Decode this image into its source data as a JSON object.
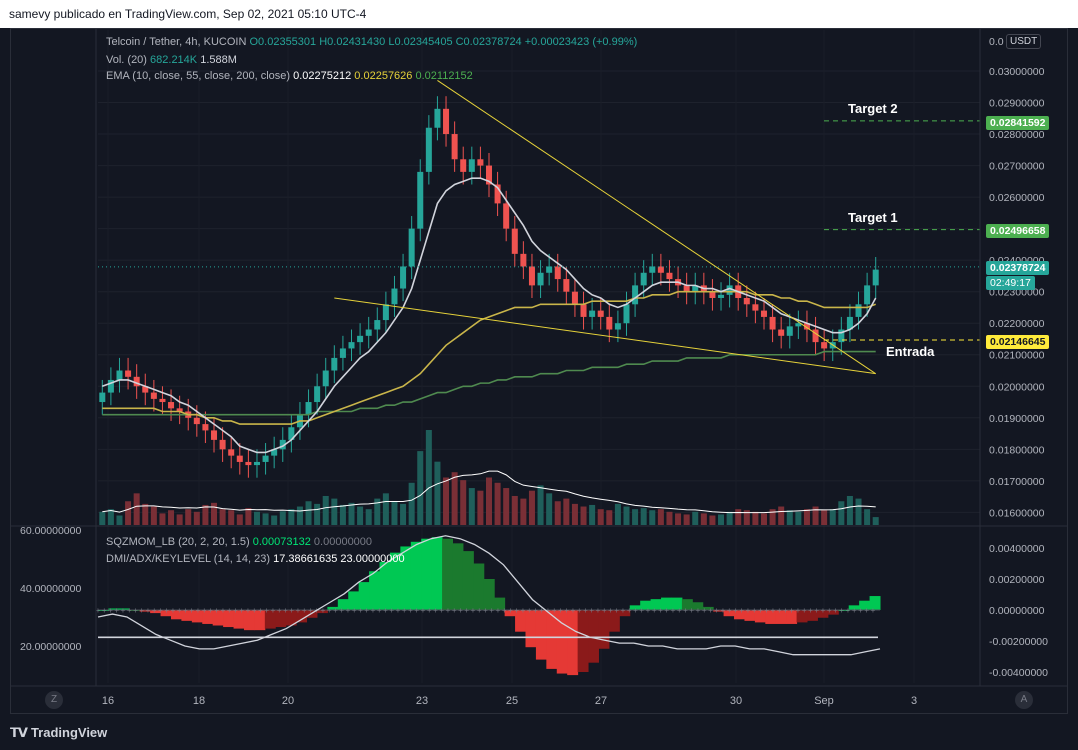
{
  "header": {
    "caption": "samevy publicado en TradingView.com, Sep 02, 2021 05:10 UTC-4"
  },
  "legend": {
    "symbol": "Telcoin / Tether, 4h, KUCOIN",
    "ohlc": "O0.02355301  H0.02431430  L0.02345405  C0.02378724  +0.00023423 (+0.99%)",
    "vol_label": "Vol. (20)",
    "vol_val1": "682.214K",
    "vol_val2": "1.588M",
    "ema_label": "EMA (10, close, 55, close, 200, close)",
    "ema_val1": "0.02275212",
    "ema_val2": "0.02257626",
    "ema_val3": "0.02112152",
    "sqz_label": "SQZMOM_LB (20, 2, 20, 1.5)",
    "sqz_val1": "0.00073132",
    "sqz_val2": "0.00000000",
    "dmi_label": "DMI/ADX/KEYLEVEL (14, 14, 23)",
    "dmi_val1": "17.38661635",
    "dmi_val2": "23.00000000"
  },
  "currency_button": "USDT",
  "annotations": {
    "target2": "Target 2",
    "target1": "Target 1",
    "entry": "Entrada"
  },
  "price_tags": {
    "target2": "0.02841592",
    "target1": "0.02496658",
    "last": "0.02378724",
    "countdown": "02:49:17",
    "entry": "0.02146645"
  },
  "price_axis": [
    "0.03000000",
    "0.02900000",
    "0.02800000",
    "0.02700000",
    "0.02600000",
    "0.02500000",
    "0.02400000",
    "0.02300000",
    "0.02200000",
    "0.02100000",
    "0.02000000",
    "0.01900000",
    "0.01800000",
    "0.01700000",
    "0.01600000"
  ],
  "price_axis_top": "0.0",
  "osc_right_axis": [
    "0.00400000",
    "0.00200000",
    "0.00000000",
    "-0.00200000",
    "-0.00400000"
  ],
  "osc_left_axis": [
    "60.00000000",
    "40.00000000",
    "20.00000000"
  ],
  "time_axis": [
    "16",
    "18",
    "20",
    "23",
    "25",
    "27",
    "30",
    "Sep",
    "3"
  ],
  "corners": {
    "left": "Z",
    "right": "A"
  },
  "footer": {
    "brand": "TradingView"
  },
  "colors": {
    "up": "#26a69a",
    "down": "#ef5350",
    "ema10": "#d1d4dc",
    "ema55": "#c9b54a",
    "ema200": "#4f8a4f",
    "trend": "#e6d23a",
    "target": "#4caf50",
    "entry": "#ffeb3b"
  },
  "chart_data": {
    "type": "candlestick",
    "symbol": "Telcoin / Tether",
    "interval": "4h",
    "y_range": [
      0.0156,
      0.0313
    ],
    "close_series": [
      0.0198,
      0.0202,
      0.0205,
      0.0203,
      0.02,
      0.0198,
      0.0196,
      0.0195,
      0.0193,
      0.0192,
      0.019,
      0.0188,
      0.0186,
      0.0183,
      0.018,
      0.0178,
      0.0176,
      0.0175,
      0.0176,
      0.0178,
      0.018,
      0.0183,
      0.0187,
      0.0191,
      0.0195,
      0.02,
      0.0205,
      0.0209,
      0.0212,
      0.0214,
      0.0216,
      0.0218,
      0.0221,
      0.0226,
      0.0231,
      0.0238,
      0.025,
      0.0268,
      0.0282,
      0.0288,
      0.028,
      0.0272,
      0.0268,
      0.0272,
      0.027,
      0.0264,
      0.0258,
      0.025,
      0.0242,
      0.0238,
      0.0232,
      0.0236,
      0.0238,
      0.0234,
      0.023,
      0.0226,
      0.0222,
      0.0224,
      0.0222,
      0.0218,
      0.022,
      0.0226,
      0.0232,
      0.0236,
      0.0238,
      0.0236,
      0.0234,
      0.0232,
      0.023,
      0.0232,
      0.023,
      0.0228,
      0.0229,
      0.0232,
      0.0228,
      0.0226,
      0.0224,
      0.0222,
      0.0218,
      0.0216,
      0.0219,
      0.022,
      0.0218,
      0.0214,
      0.0212,
      0.0214,
      0.0218,
      0.0222,
      0.0226,
      0.0232,
      0.0237
    ],
    "ema10": [
      0.02,
      0.0201,
      0.0202,
      0.0202,
      0.0201,
      0.02,
      0.0199,
      0.0198,
      0.0197,
      0.0195,
      0.0194,
      0.0192,
      0.019,
      0.0188,
      0.0186,
      0.0184,
      0.0181,
      0.018,
      0.0179,
      0.0179,
      0.018,
      0.0181,
      0.0183,
      0.0186,
      0.0189,
      0.0192,
      0.0196,
      0.02,
      0.0203,
      0.0206,
      0.0209,
      0.0211,
      0.0214,
      0.0217,
      0.0221,
      0.0225,
      0.0231,
      0.024,
      0.0249,
      0.0258,
      0.0262,
      0.0264,
      0.0265,
      0.0266,
      0.0266,
      0.0265,
      0.0263,
      0.0259,
      0.0255,
      0.0251,
      0.0246,
      0.0243,
      0.0241,
      0.0239,
      0.0237,
      0.0234,
      0.0231,
      0.0229,
      0.0228,
      0.0226,
      0.0225,
      0.0226,
      0.0228,
      0.023,
      0.0232,
      0.0233,
      0.0233,
      0.0233,
      0.0232,
      0.0232,
      0.0231,
      0.0231,
      0.023,
      0.0231,
      0.023,
      0.0229,
      0.0228,
      0.0227,
      0.0225,
      0.0223,
      0.0222,
      0.0221,
      0.022,
      0.0219,
      0.0218,
      0.0217,
      0.0217,
      0.0218,
      0.022,
      0.0223,
      0.0228
    ],
    "ema55": [
      0.0193,
      0.0193,
      0.0193,
      0.0193,
      0.0193,
      0.0193,
      0.0193,
      0.0192,
      0.0192,
      0.0192,
      0.0191,
      0.0191,
      0.019,
      0.019,
      0.0189,
      0.0189,
      0.0188,
      0.0188,
      0.0188,
      0.0188,
      0.0188,
      0.0188,
      0.0188,
      0.0189,
      0.0189,
      0.019,
      0.0191,
      0.0192,
      0.0193,
      0.0194,
      0.0195,
      0.0196,
      0.0197,
      0.0198,
      0.0199,
      0.02,
      0.0202,
      0.0204,
      0.0207,
      0.021,
      0.0213,
      0.0215,
      0.0217,
      0.0219,
      0.0221,
      0.0222,
      0.0223,
      0.0224,
      0.0225,
      0.0225,
      0.0225,
      0.0226,
      0.0226,
      0.0226,
      0.0226,
      0.0226,
      0.0226,
      0.0227,
      0.0227,
      0.0227,
      0.0227,
      0.0227,
      0.0228,
      0.0228,
      0.0229,
      0.0229,
      0.0229,
      0.023,
      0.023,
      0.023,
      0.023,
      0.023,
      0.023,
      0.023,
      0.023,
      0.023,
      0.0229,
      0.0229,
      0.0229,
      0.0228,
      0.0228,
      0.0227,
      0.0227,
      0.0226,
      0.0225,
      0.0225,
      0.0225,
      0.0225,
      0.0225,
      0.0225,
      0.0226
    ],
    "ema200": [
      0.0191,
      0.0191,
      0.0191,
      0.0191,
      0.0191,
      0.0191,
      0.0191,
      0.0191,
      0.0191,
      0.0191,
      0.0191,
      0.0191,
      0.0191,
      0.0191,
      0.0191,
      0.0191,
      0.0191,
      0.0191,
      0.0191,
      0.0191,
      0.0191,
      0.0191,
      0.0191,
      0.0191,
      0.0191,
      0.0192,
      0.0192,
      0.0192,
      0.0192,
      0.0192,
      0.0193,
      0.0193,
      0.0193,
      0.0194,
      0.0194,
      0.0195,
      0.0195,
      0.0196,
      0.0197,
      0.0198,
      0.0198,
      0.0199,
      0.02,
      0.02,
      0.0201,
      0.0201,
      0.0202,
      0.0202,
      0.0203,
      0.0203,
      0.0203,
      0.0204,
      0.0204,
      0.0204,
      0.0205,
      0.0205,
      0.0205,
      0.0206,
      0.0206,
      0.0206,
      0.0206,
      0.0207,
      0.0207,
      0.0207,
      0.0208,
      0.0208,
      0.0208,
      0.0208,
      0.0209,
      0.0209,
      0.0209,
      0.0209,
      0.0209,
      0.021,
      0.021,
      0.021,
      0.021,
      0.021,
      0.021,
      0.021,
      0.021,
      0.021,
      0.021,
      0.021,
      0.0211,
      0.0211,
      0.0211,
      0.0211,
      0.0211,
      0.0211,
      0.0211
    ],
    "volume": [
      0.25,
      0.3,
      0.18,
      0.45,
      0.6,
      0.4,
      0.35,
      0.22,
      0.28,
      0.2,
      0.3,
      0.25,
      0.38,
      0.42,
      0.3,
      0.28,
      0.2,
      0.32,
      0.25,
      0.22,
      0.18,
      0.26,
      0.3,
      0.35,
      0.45,
      0.4,
      0.55,
      0.5,
      0.38,
      0.42,
      0.35,
      0.3,
      0.5,
      0.6,
      0.45,
      0.4,
      0.8,
      1.4,
      1.8,
      1.2,
      0.9,
      1.0,
      0.85,
      0.7,
      0.65,
      0.9,
      0.8,
      0.7,
      0.55,
      0.5,
      0.65,
      0.75,
      0.6,
      0.45,
      0.5,
      0.4,
      0.35,
      0.38,
      0.3,
      0.28,
      0.4,
      0.35,
      0.3,
      0.32,
      0.28,
      0.3,
      0.25,
      0.22,
      0.2,
      0.25,
      0.22,
      0.18,
      0.2,
      0.25,
      0.3,
      0.28,
      0.25,
      0.22,
      0.3,
      0.35,
      0.28,
      0.25,
      0.3,
      0.35,
      0.28,
      0.3,
      0.45,
      0.55,
      0.5,
      0.3,
      0.15
    ],
    "levels": {
      "target2": 0.02841592,
      "target1": 0.02496658,
      "entry": 0.02146645,
      "last": 0.02378724
    },
    "trendlines": [
      {
        "from": [
          39,
          0.0297
        ],
        "to": [
          90,
          0.0204
        ]
      },
      {
        "from": [
          27,
          0.0228
        ],
        "to": [
          90,
          0.0204
        ]
      }
    ],
    "squeeze_momentum": [
      0.0,
      0.0001,
      0.0001,
      0.0,
      -0.0001,
      -0.0002,
      -0.0004,
      -0.0006,
      -0.0007,
      -0.0008,
      -0.0009,
      -0.001,
      -0.0011,
      -0.0012,
      -0.0013,
      -0.0013,
      -0.0012,
      -0.0011,
      -0.001,
      -0.0008,
      -0.0005,
      -0.0002,
      0.0002,
      0.0007,
      0.0012,
      0.0018,
      0.0025,
      0.0031,
      0.0037,
      0.0041,
      0.0044,
      0.0046,
      0.0047,
      0.0046,
      0.0043,
      0.0038,
      0.003,
      0.002,
      0.0008,
      -0.0004,
      -0.0014,
      -0.0024,
      -0.0032,
      -0.0038,
      -0.0041,
      -0.0042,
      -0.004,
      -0.0034,
      -0.0025,
      -0.0014,
      -0.0004,
      0.0003,
      0.0006,
      0.0007,
      0.0008,
      0.0008,
      0.0007,
      0.0005,
      0.0002,
      -0.0001,
      -0.0004,
      -0.0006,
      -0.0007,
      -0.0008,
      -0.0009,
      -0.0009,
      -0.0009,
      -0.0008,
      -0.0007,
      -0.0005,
      -0.0003,
      0.0,
      0.0003,
      0.0006,
      0.0009
    ],
    "adx": [
      30,
      31,
      30,
      27,
      24,
      22,
      20,
      19,
      19,
      20,
      21,
      22,
      24,
      26,
      29,
      32,
      35,
      38,
      42,
      45,
      49,
      52,
      55,
      57,
      58,
      57,
      55,
      52,
      48,
      42,
      36,
      32,
      28,
      25,
      23,
      22,
      21,
      21,
      20,
      20,
      19,
      19,
      19,
      20,
      20,
      19,
      19,
      18,
      17,
      17,
      17,
      17,
      17,
      18,
      19
    ],
    "key_level": 23,
    "x_labels": [
      "16",
      "18",
      "20",
      "23",
      "25",
      "27",
      "30",
      "Sep",
      "3"
    ]
  }
}
